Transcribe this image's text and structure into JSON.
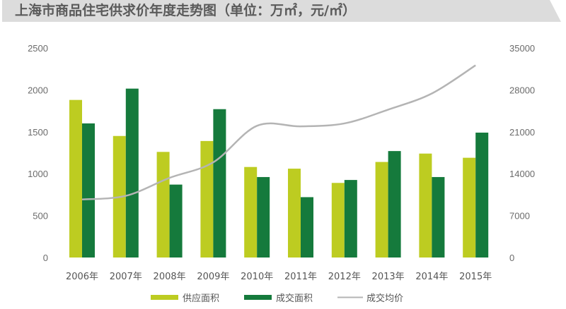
{
  "title": "上海市商品住宅供求价年度走势图（单位：万㎡，元/㎡）",
  "colors": {
    "title_bg": "#dcdcdc",
    "title_text": "#5a5a5a",
    "supply": "#bdcc21",
    "deal": "#157a3c",
    "price_line": "#b4b4b4",
    "tick_text": "#6b6b6b"
  },
  "chart_data": {
    "type": "bar",
    "title": "上海市商品住宅供求价年度走势图（单位：万㎡，元/㎡）",
    "categories": [
      "2006年",
      "2007年",
      "2008年",
      "2009年",
      "2010年",
      "2011年",
      "2012年",
      "2013年",
      "2014年",
      "2015年"
    ],
    "series": [
      {
        "name": "供应面积",
        "type": "bar",
        "axis": "left",
        "values": [
          1880,
          1450,
          1260,
          1390,
          1080,
          1060,
          890,
          1140,
          1240,
          1190
        ]
      },
      {
        "name": "成交面积",
        "type": "bar",
        "axis": "left",
        "values": [
          1600,
          2015,
          870,
          1770,
          960,
          720,
          925,
          1270,
          960,
          1490
        ]
      },
      {
        "name": "成交均价",
        "type": "line",
        "axis": "right",
        "values": [
          9700,
          10300,
          13300,
          15900,
          22000,
          21900,
          22400,
          24700,
          27400,
          32100
        ]
      }
    ],
    "xlabel": "",
    "ylabel_left": "万㎡",
    "ylabel_right": "元/㎡",
    "ylim_left": [
      0,
      2500
    ],
    "yticks_left": [
      0,
      500,
      1000,
      1500,
      2000,
      2500
    ],
    "ylim_right": [
      0,
      35000
    ],
    "yticks_right": [
      0,
      7000,
      14000,
      21000,
      28000,
      35000
    ],
    "grid": false,
    "legend_position": "bottom"
  },
  "legend": [
    {
      "label": "供应面积",
      "kind": "bar"
    },
    {
      "label": "成交面积",
      "kind": "bar"
    },
    {
      "label": "成交均价",
      "kind": "line"
    }
  ]
}
